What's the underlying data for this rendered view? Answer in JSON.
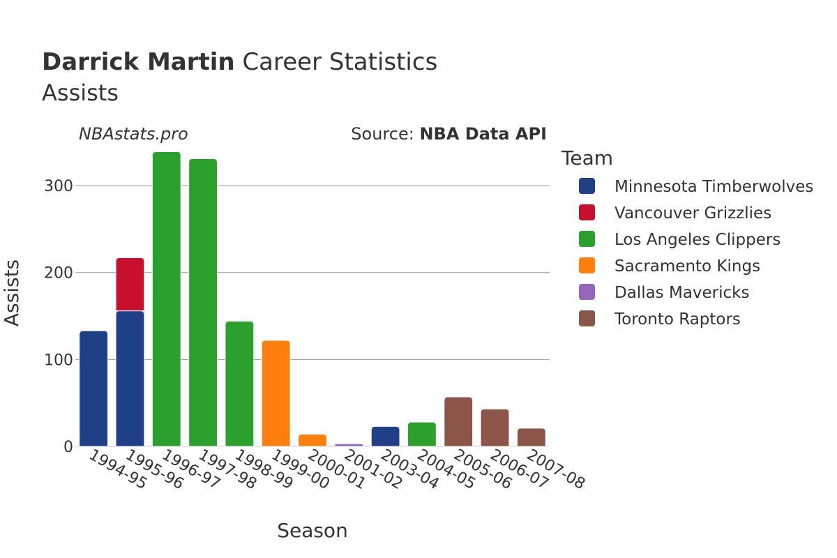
{
  "header": {
    "title_bold": "Darrick Martin",
    "title_rest": "Career Statistics",
    "subtitle": "Assists"
  },
  "watermark": "NBAstats.pro",
  "source": {
    "prefix": "Source: ",
    "name": "NBA Data API"
  },
  "legend": {
    "title": "Team"
  },
  "chart_data": {
    "type": "bar",
    "barmode": "stack",
    "xlabel": "Season",
    "ylabel": "Assists",
    "ylim": [
      0,
      345
    ],
    "yticks": [
      0,
      100,
      200,
      300
    ],
    "grid": true,
    "legend_position": "right",
    "categories": [
      "1994-95",
      "1995-96",
      "1996-97",
      "1997-98",
      "1998-99",
      "1999-00",
      "2000-01",
      "2001-02",
      "2003-04",
      "2004-05",
      "2005-06",
      "2006-07",
      "2007-08"
    ],
    "series": [
      {
        "name": "Minnesota Timberwolves",
        "color": "#1f3f87",
        "values": [
          133,
          156,
          0,
          0,
          0,
          0,
          0,
          0,
          23,
          0,
          0,
          0,
          0
        ]
      },
      {
        "name": "Vancouver Grizzlies",
        "color": "#c8102e",
        "values": [
          0,
          61,
          0,
          0,
          0,
          0,
          0,
          0,
          0,
          0,
          0,
          0,
          0
        ]
      },
      {
        "name": "Los Angeles Clippers",
        "color": "#2ca02c",
        "values": [
          0,
          0,
          339,
          331,
          144,
          0,
          0,
          0,
          0,
          28,
          0,
          0,
          0
        ]
      },
      {
        "name": "Sacramento Kings",
        "color": "#ff7f0e",
        "values": [
          0,
          0,
          0,
          0,
          0,
          122,
          14,
          0,
          0,
          0,
          0,
          0,
          0
        ]
      },
      {
        "name": "Dallas Mavericks",
        "color": "#9467bd",
        "values": [
          0,
          0,
          0,
          0,
          0,
          0,
          0,
          3,
          0,
          0,
          0,
          0,
          0
        ]
      },
      {
        "name": "Toronto Raptors",
        "color": "#8b5649",
        "values": [
          0,
          0,
          0,
          0,
          0,
          0,
          0,
          0,
          0,
          0,
          57,
          43,
          21
        ]
      }
    ]
  }
}
